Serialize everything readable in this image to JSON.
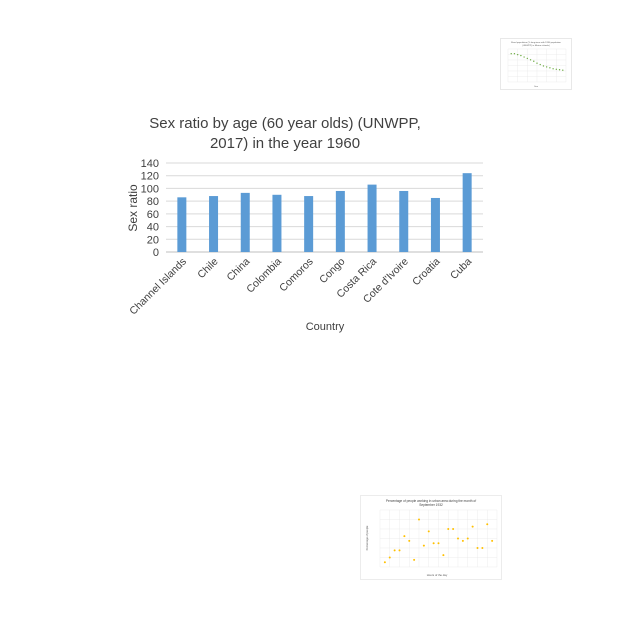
{
  "chart_data": [
    {
      "type": "bar",
      "title_lines": [
        "Sex ratio by age (60 year olds) (UNWPP,",
        "2017) in the year 1960"
      ],
      "xlabel": "Country",
      "ylabel": "Sex ratio",
      "categories": [
        "Channel Islands",
        "Chile",
        "China",
        "Colombia",
        "Comoros",
        "Congo",
        "Costa Rica",
        "Cote d'Ivoire",
        "Croatia",
        "Cuba"
      ],
      "values": [
        86,
        88,
        93,
        90,
        88,
        96,
        106,
        96,
        85,
        124
      ],
      "ylim": [
        0,
        140
      ],
      "yticks": [
        0,
        20,
        40,
        60,
        80,
        100,
        120,
        140
      ],
      "ytick_labels": [
        "0",
        "20",
        "40",
        "60",
        "80",
        "100",
        "120",
        "140"
      ],
      "grid": true,
      "bar_color": "#5b9bd5"
    },
    {
      "type": "scatter",
      "title_lines": [
        "Rural population (% long-term with 1990 population",
        "(UNWPP) in Marine islands)"
      ],
      "xlabel": "Year",
      "ylabel": "",
      "x": [
        1,
        2,
        3,
        4,
        5,
        6,
        7,
        8,
        9,
        10,
        11,
        12,
        13,
        14,
        15,
        16,
        17
      ],
      "y": [
        100,
        100,
        98,
        96,
        93,
        90,
        87,
        84,
        80,
        77,
        74,
        72,
        70,
        68,
        67,
        66,
        65
      ],
      "xlim": [
        0,
        18
      ],
      "ylim": [
        40,
        110
      ],
      "grid": true,
      "point_color": "#70ad47"
    },
    {
      "type": "scatter",
      "title_lines": [
        "Percentage of people working in urban area during the month of",
        "September 1932"
      ],
      "xlabel": "Hours of the day",
      "ylabel": "Percentage of people",
      "x": [
        1,
        2,
        3,
        4,
        5,
        6,
        7,
        8,
        9,
        10,
        11,
        12,
        13,
        14,
        15,
        16,
        17,
        18,
        19,
        20,
        21,
        22,
        23
      ],
      "y": [
        10,
        20,
        35,
        35,
        65,
        55,
        15,
        100,
        45,
        75,
        50,
        50,
        25,
        80,
        80,
        60,
        55,
        60,
        85,
        40,
        40,
        90,
        55
      ],
      "xlim": [
        0,
        24
      ],
      "ylim": [
        0,
        120
      ],
      "grid": true,
      "point_color": "#ffc000"
    }
  ]
}
